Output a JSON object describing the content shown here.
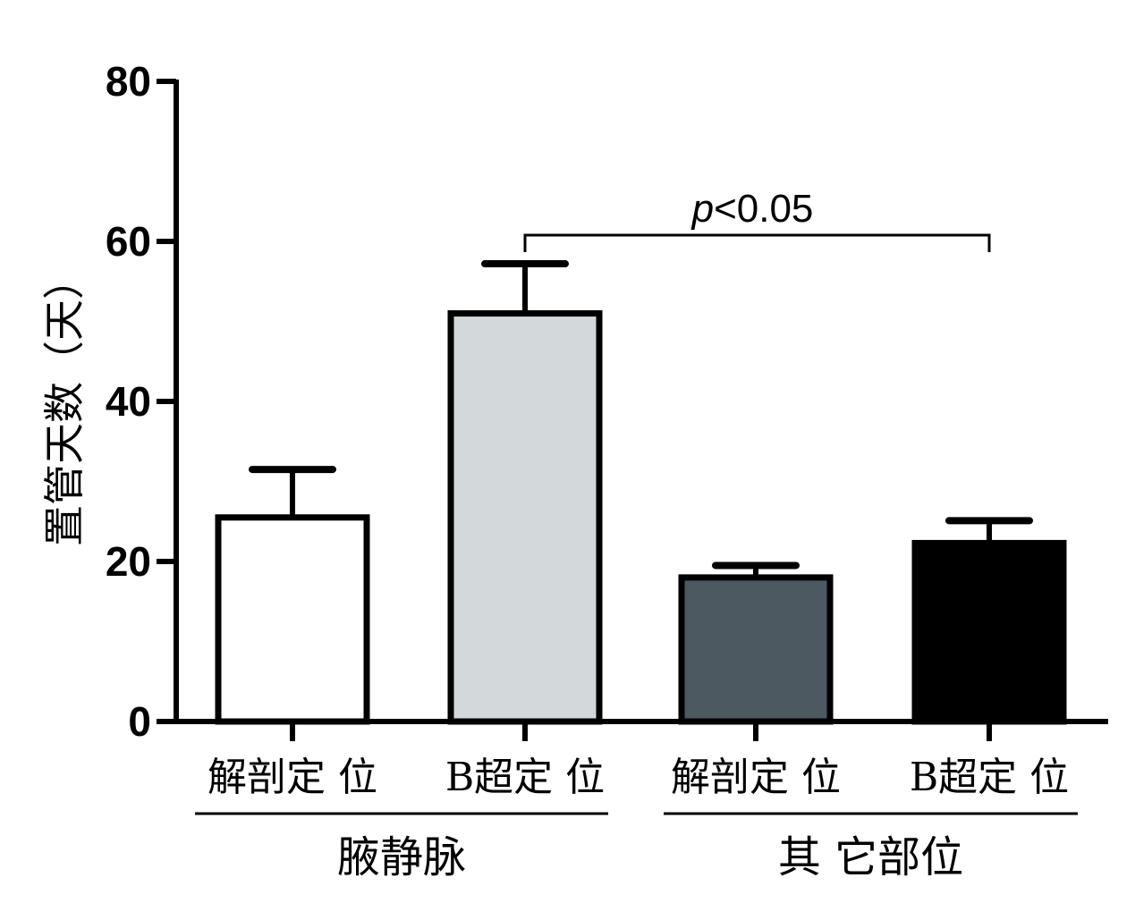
{
  "chart_data": {
    "type": "bar",
    "ylabel": "置管天数（天）",
    "ylim": [
      0,
      80
    ],
    "yticks": [
      0,
      20,
      40,
      60,
      80
    ],
    "categories": [
      "解剖定 位",
      "B超定 位",
      "解剖定 位",
      "B超定 位"
    ],
    "values": [
      25.5,
      51,
      18,
      22.3
    ],
    "errors": [
      6,
      6.2,
      1.5,
      2.8
    ],
    "colors": [
      "#ffffff",
      "#d3d9da",
      "#4d5960",
      "#000000"
    ],
    "groups": [
      {
        "label": "腋静脉",
        "members": [
          0,
          1
        ]
      },
      {
        "label": "其 它部位",
        "members": [
          2,
          3
        ]
      }
    ],
    "significance": {
      "from": 1,
      "to": 3,
      "text_italic": "p",
      "text": "<0.05"
    }
  }
}
